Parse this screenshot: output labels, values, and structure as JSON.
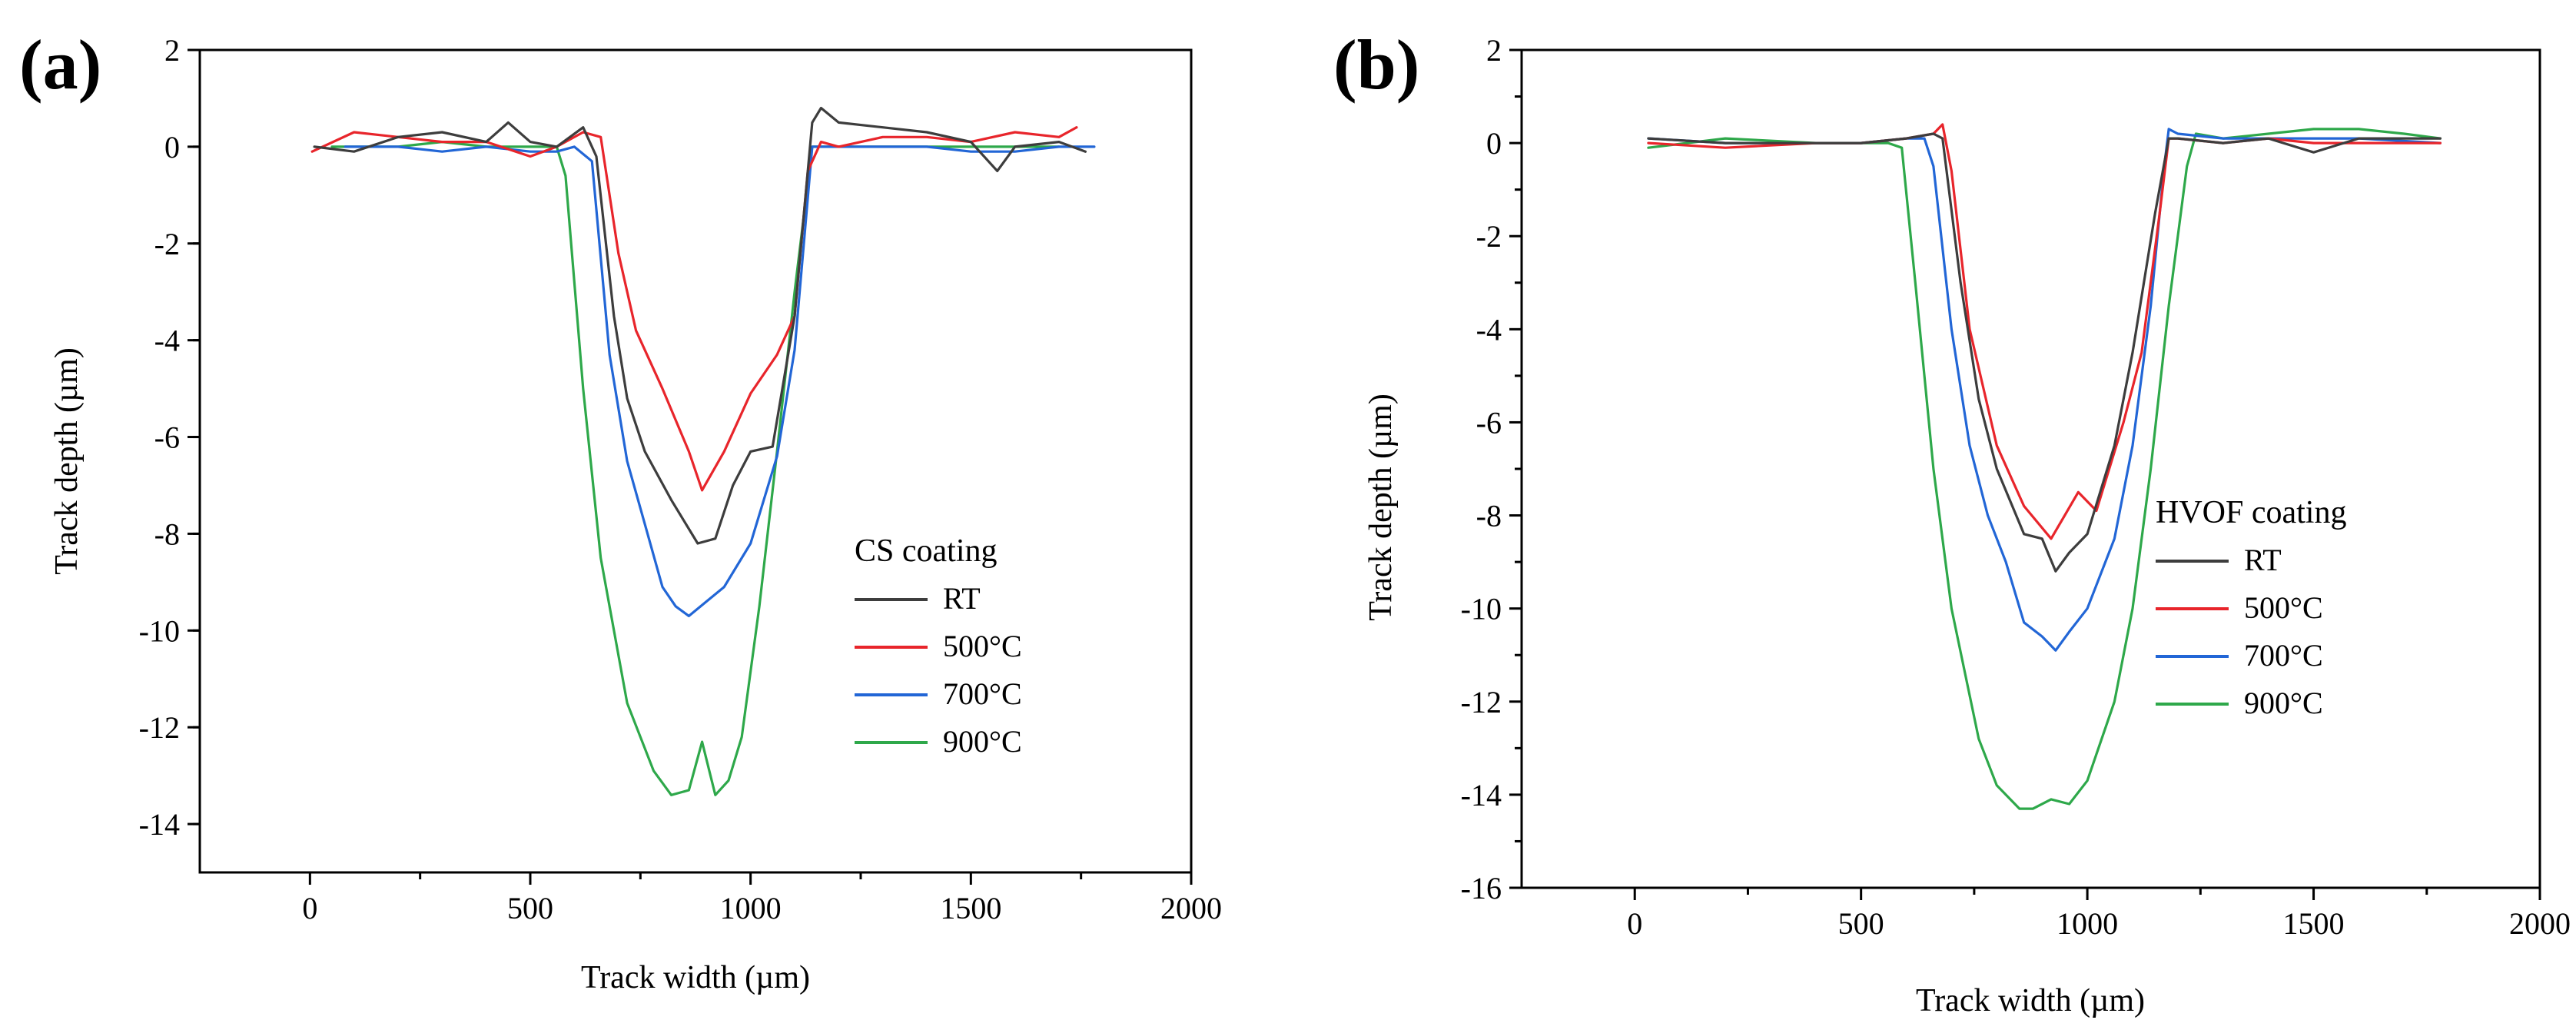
{
  "colors": {
    "RT": "#3d3d3d",
    "500": "#e8252b",
    "700": "#2266d6",
    "900": "#2ea84a"
  },
  "chart_data": [
    {
      "type": "line",
      "panel_label": "(a)",
      "xlabel": "Track width (µm)",
      "ylabel": "Track depth (µm)",
      "xlim": [
        -250,
        2000
      ],
      "ylim": [
        -15,
        2
      ],
      "xticks": [
        0,
        500,
        1000,
        1500,
        2000
      ],
      "xtick_labels": [
        "0",
        "500",
        "1000",
        "1500",
        "2000"
      ],
      "yticks": [
        2,
        0,
        -2,
        -4,
        -6,
        -8,
        -10,
        -12,
        -14
      ],
      "ytick_labels": [
        "2",
        "0",
        "-2",
        "-4",
        "-6",
        "-8",
        "-10",
        "-12",
        "-14"
      ],
      "legend_title": "CS coating",
      "legend_position": "lower-right",
      "series": [
        {
          "name": "RT",
          "color_key": "RT",
          "x": [
            10,
            100,
            200,
            300,
            400,
            450,
            500,
            560,
            620,
            650,
            690,
            720,
            760,
            820,
            880,
            920,
            960,
            1000,
            1050,
            1100,
            1140,
            1160,
            1200,
            1300,
            1400,
            1500,
            1560,
            1600,
            1700,
            1760
          ],
          "y": [
            0.0,
            -0.1,
            0.2,
            0.3,
            0.1,
            0.5,
            0.1,
            0.0,
            0.4,
            -0.2,
            -3.5,
            -5.2,
            -6.3,
            -7.3,
            -8.2,
            -8.1,
            -7.0,
            -6.3,
            -6.2,
            -3.5,
            0.5,
            0.8,
            0.5,
            0.4,
            0.3,
            0.1,
            -0.5,
            0.0,
            0.1,
            -0.1
          ]
        },
        {
          "name": "500°C",
          "color_key": "500",
          "x": [
            5,
            100,
            200,
            300,
            400,
            500,
            560,
            620,
            660,
            700,
            740,
            800,
            860,
            890,
            940,
            1000,
            1060,
            1100,
            1130,
            1160,
            1200,
            1300,
            1400,
            1500,
            1600,
            1700,
            1740
          ],
          "y": [
            -0.1,
            0.3,
            0.2,
            0.1,
            0.1,
            -0.2,
            0.0,
            0.3,
            0.2,
            -2.2,
            -3.8,
            -5.0,
            -6.3,
            -7.1,
            -6.3,
            -5.1,
            -4.3,
            -3.5,
            -0.5,
            0.1,
            0.0,
            0.2,
            0.2,
            0.1,
            0.3,
            0.2,
            0.4
          ]
        },
        {
          "name": "700°C",
          "color_key": "700",
          "x": [
            80,
            200,
            300,
            400,
            500,
            560,
            600,
            640,
            680,
            720,
            760,
            800,
            830,
            860,
            900,
            940,
            1000,
            1060,
            1100,
            1140,
            1200,
            1300,
            1400,
            1500,
            1600,
            1700,
            1780
          ],
          "y": [
            0.0,
            0.0,
            -0.1,
            0.0,
            -0.1,
            -0.1,
            0.0,
            -0.3,
            -4.3,
            -6.5,
            -7.8,
            -9.1,
            -9.5,
            -9.7,
            -9.4,
            -9.1,
            -8.2,
            -6.4,
            -4.2,
            0.0,
            0.0,
            0.0,
            0.0,
            -0.1,
            -0.1,
            0.0,
            0.0
          ]
        },
        {
          "name": "900°C",
          "color_key": "900",
          "x": [
            50,
            200,
            300,
            400,
            500,
            560,
            580,
            620,
            660,
            720,
            780,
            820,
            860,
            890,
            920,
            950,
            980,
            1020,
            1060,
            1100,
            1140,
            1200,
            1300,
            1400,
            1500,
            1600,
            1700
          ],
          "y": [
            0.0,
            0.0,
            0.1,
            0.0,
            0.0,
            0.0,
            -0.6,
            -5.0,
            -8.5,
            -11.5,
            -12.9,
            -13.4,
            -13.3,
            -12.3,
            -13.4,
            -13.1,
            -12.2,
            -9.5,
            -6.3,
            -3.0,
            0.0,
            0.0,
            0.0,
            0.0,
            0.0,
            0.0,
            0.0
          ]
        }
      ]
    },
    {
      "type": "line",
      "panel_label": "(b)",
      "xlabel": "Track width (µm)",
      "ylabel": "Track depth (µm)",
      "xlim": [
        -250,
        2000
      ],
      "ylim": [
        -16,
        2
      ],
      "xticks": [
        0,
        500,
        1000,
        1500,
        2000
      ],
      "xtick_labels": [
        "0",
        "500",
        "1000",
        "1500",
        "2000"
      ],
      "yticks": [
        2,
        0,
        -2,
        -4,
        -6,
        -8,
        -10,
        -12,
        -14,
        -16
      ],
      "ytick_labels": [
        "2",
        "0",
        "-2",
        "-4",
        "-6",
        "-8",
        "-10",
        "-12",
        "-14",
        "-16"
      ],
      "legend_title": "HVOF coating",
      "legend_position": "lower-right",
      "series": [
        {
          "name": "RT",
          "color_key": "RT",
          "x": [
            30,
            200,
            400,
            500,
            600,
            660,
            680,
            720,
            760,
            800,
            860,
            900,
            930,
            960,
            1000,
            1060,
            1100,
            1150,
            1180,
            1200,
            1300,
            1400,
            1500,
            1600,
            1780
          ],
          "y": [
            0.1,
            0.0,
            0.0,
            0.0,
            0.1,
            0.2,
            0.1,
            -3.0,
            -5.5,
            -7.0,
            -8.4,
            -8.5,
            -9.2,
            -8.8,
            -8.4,
            -6.5,
            -4.5,
            -1.5,
            0.1,
            0.1,
            0.0,
            0.1,
            -0.2,
            0.1,
            0.1
          ]
        },
        {
          "name": "500°C",
          "color_key": "500",
          "x": [
            30,
            200,
            400,
            500,
            600,
            660,
            680,
            700,
            740,
            800,
            860,
            920,
            950,
            980,
            1020,
            1080,
            1120,
            1160,
            1180,
            1200,
            1300,
            1400,
            1500,
            1600,
            1780
          ],
          "y": [
            0.0,
            -0.1,
            0.0,
            0.0,
            0.1,
            0.2,
            0.4,
            -0.6,
            -4.0,
            -6.5,
            -7.8,
            -8.5,
            -8.0,
            -7.5,
            -7.9,
            -6.0,
            -4.5,
            -1.5,
            0.1,
            0.1,
            0.0,
            0.1,
            0.0,
            0.0,
            0.0
          ]
        },
        {
          "name": "700°C",
          "color_key": "700",
          "x": [
            30,
            200,
            400,
            500,
            600,
            640,
            660,
            700,
            740,
            780,
            820,
            860,
            900,
            930,
            960,
            1000,
            1060,
            1100,
            1140,
            1170,
            1180,
            1200,
            1300,
            1500,
            1600,
            1780
          ],
          "y": [
            0.1,
            0.0,
            0.0,
            0.0,
            0.1,
            0.1,
            -0.5,
            -4.0,
            -6.5,
            -8.0,
            -9.0,
            -10.3,
            -10.6,
            -10.9,
            -10.5,
            -10.0,
            -8.5,
            -6.5,
            -3.5,
            -0.5,
            0.3,
            0.2,
            0.1,
            0.1,
            0.1,
            0.0
          ]
        },
        {
          "name": "900°C",
          "color_key": "900",
          "x": [
            30,
            200,
            400,
            500,
            560,
            590,
            620,
            660,
            700,
            760,
            800,
            850,
            880,
            920,
            960,
            1000,
            1060,
            1100,
            1140,
            1180,
            1220,
            1240,
            1300,
            1400,
            1500,
            1600,
            1700,
            1780
          ],
          "y": [
            -0.1,
            0.1,
            0.0,
            0.0,
            0.0,
            -0.1,
            -3.0,
            -7.0,
            -10.0,
            -12.8,
            -13.8,
            -14.3,
            -14.3,
            -14.1,
            -14.2,
            -13.7,
            -12.0,
            -10.0,
            -7.0,
            -3.5,
            -0.5,
            0.2,
            0.1,
            0.2,
            0.3,
            0.3,
            0.2,
            0.1
          ]
        }
      ]
    }
  ]
}
